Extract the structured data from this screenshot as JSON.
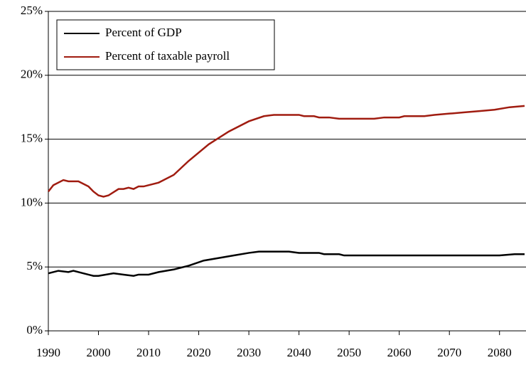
{
  "chart_data": {
    "type": "line",
    "series": [
      {
        "name": "Percent of GDP",
        "color": "#000000",
        "x": [
          1990,
          1992,
          1994,
          1995,
          1997,
          1999,
          2000,
          2003,
          2005,
          2007,
          2008,
          2010,
          2012,
          2015,
          2018,
          2021,
          2024,
          2027,
          2030,
          2032,
          2038,
          2040,
          2044,
          2045,
          2048,
          2049,
          2080,
          2083,
          2085
        ],
        "values": [
          4.5,
          4.7,
          4.6,
          4.7,
          4.5,
          4.3,
          4.3,
          4.5,
          4.4,
          4.3,
          4.4,
          4.4,
          4.6,
          4.8,
          5.1,
          5.5,
          5.7,
          5.9,
          6.1,
          6.2,
          6.2,
          6.1,
          6.1,
          6.0,
          6.0,
          5.9,
          5.9,
          6.0,
          6.0
        ]
      },
      {
        "name": "Percent of taxable payroll",
        "color": "#a01c10",
        "x": [
          1990,
          1991,
          1993,
          1994,
          1996,
          1998,
          1999,
          2000,
          2001,
          2002,
          2004,
          2005,
          2006,
          2007,
          2008,
          2009,
          2012,
          2015,
          2018,
          2022,
          2026,
          2030,
          2033,
          2035,
          2040,
          2041,
          2043,
          2044,
          2046,
          2048,
          2055,
          2057,
          2060,
          2061,
          2065,
          2067,
          2070,
          2073,
          2076,
          2079,
          2082,
          2085
        ],
        "values": [
          10.9,
          11.4,
          11.8,
          11.7,
          11.7,
          11.3,
          10.9,
          10.6,
          10.5,
          10.6,
          11.1,
          11.1,
          11.2,
          11.1,
          11.3,
          11.3,
          11.6,
          12.2,
          13.3,
          14.6,
          15.6,
          16.4,
          16.8,
          16.9,
          16.9,
          16.8,
          16.8,
          16.7,
          16.7,
          16.6,
          16.6,
          16.7,
          16.7,
          16.8,
          16.8,
          16.9,
          17.0,
          17.1,
          17.2,
          17.3,
          17.5,
          17.6
        ]
      }
    ],
    "xlim": [
      1990,
      2085
    ],
    "xticks": [
      1990,
      2000,
      2010,
      2020,
      2030,
      2040,
      2050,
      2060,
      2070,
      2080
    ],
    "ylim": [
      0,
      25
    ],
    "yticks": [
      {
        "value": 0,
        "label": "0%"
      },
      {
        "value": 5,
        "label": "5%"
      },
      {
        "value": 10,
        "label": "10%"
      },
      {
        "value": 15,
        "label": "15%"
      },
      {
        "value": 20,
        "label": "20%"
      },
      {
        "value": 25,
        "label": "25%"
      }
    ],
    "grid": true,
    "legend": "upper left"
  }
}
